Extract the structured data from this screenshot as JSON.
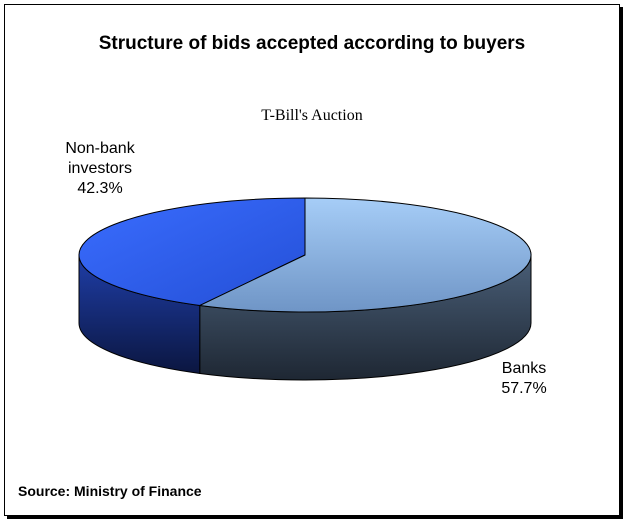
{
  "chart_data": {
    "type": "pie",
    "title": "Structure of bids accepted according to buyers",
    "subtitle": "T-Bill's Auction",
    "slices": [
      {
        "name": "Non-bank investors",
        "name_lines": [
          "Non-bank",
          "investors"
        ],
        "value": 42.3,
        "label": "42.3%",
        "color_top": "#2f63f2",
        "color_side": "#152a78"
      },
      {
        "name": "Banks",
        "name_lines": [
          "Banks"
        ],
        "value": 57.7,
        "label": "57.7%",
        "color_top": "#8fb7e6",
        "color_side": "#2c3a4c"
      }
    ],
    "legend": "none",
    "style": "3d"
  },
  "source": "Source: Ministry of Finance"
}
